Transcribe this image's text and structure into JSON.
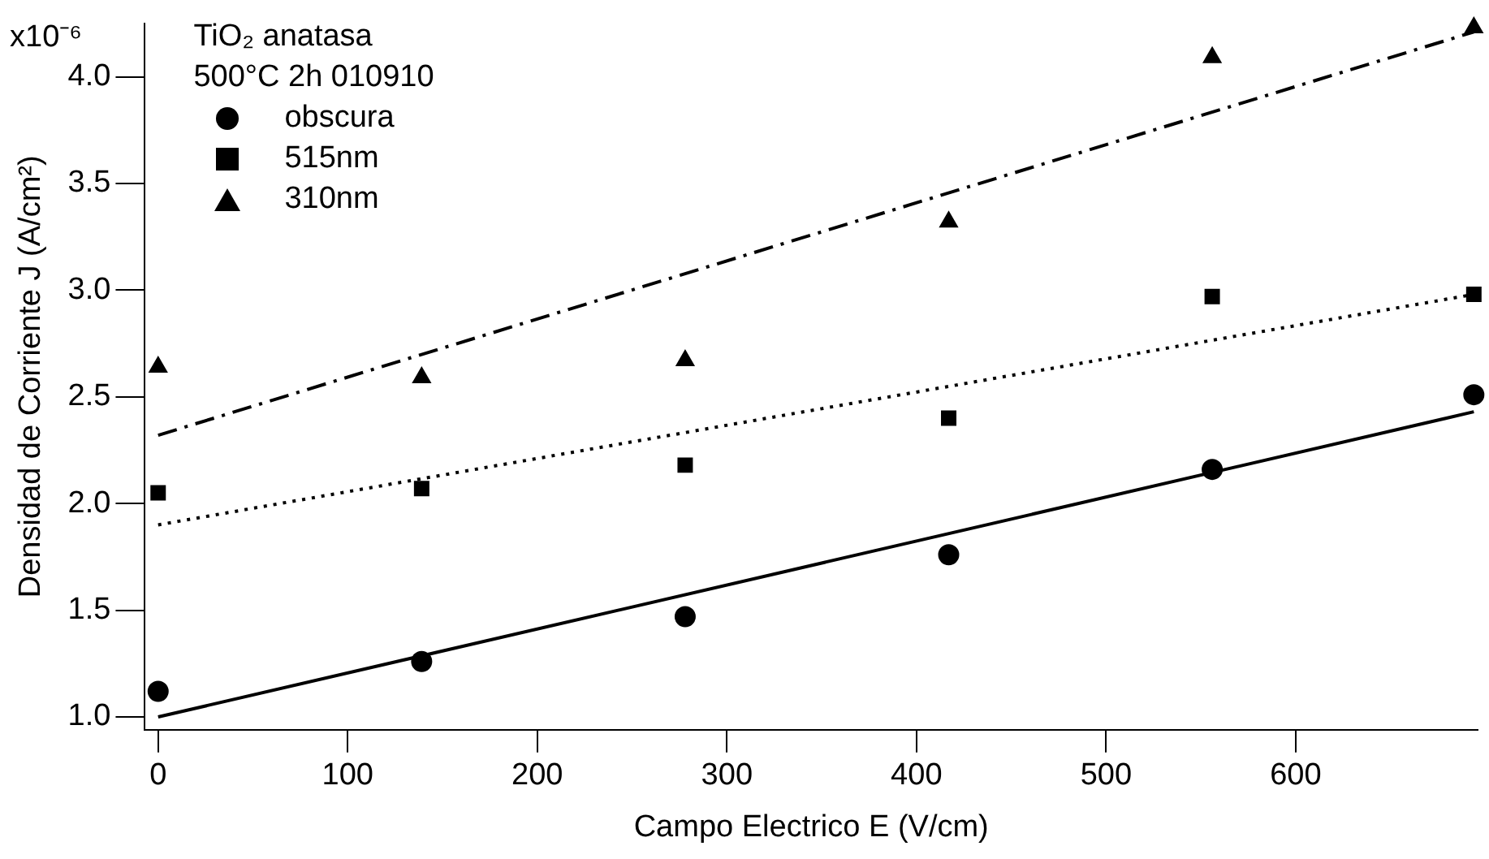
{
  "chart_data": {
    "type": "scatter",
    "xlabel": "Campo Electrico E (V/cm)",
    "ylabel": "Densidad de Corriente J (A/cm²)",
    "legend_title": "TiO₂ anatasa\n500°C 2h 010910",
    "xlim": [
      -7,
      696
    ],
    "xticks": [
      0,
      100,
      200,
      300,
      400,
      500,
      600
    ],
    "ylim": [
      0.94,
      4.25
    ],
    "yticks": [
      {
        "value": 1.0,
        "label": "1.0"
      },
      {
        "value": 1.5,
        "label": "1.5"
      },
      {
        "value": 2.0,
        "label": "2.0"
      },
      {
        "value": 2.5,
        "label": "2.5"
      },
      {
        "value": 3.0,
        "label": "3.0"
      },
      {
        "value": 3.5,
        "label": "3.5"
      },
      {
        "value": 4.0,
        "label": "4.0"
      }
    ],
    "annotations": [
      "x10⁻⁶"
    ],
    "grid": false,
    "legend": "top left",
    "series": [
      {
        "name": "obscura",
        "color": "#000000",
        "marker": "circle",
        "x": [
          0,
          139,
          278,
          417,
          556,
          694
        ],
        "values": [
          1.12,
          1.26,
          1.47,
          1.76,
          2.16,
          2.51
        ]
      },
      {
        "name": "515nm",
        "color": "#000000",
        "marker": "square",
        "x": [
          0,
          139,
          278,
          417,
          556,
          694
        ],
        "values": [
          2.05,
          2.07,
          2.18,
          2.4,
          2.97,
          2.98
        ]
      },
      {
        "name": "310nm",
        "color": "#000000",
        "marker": "triangle",
        "x": [
          0,
          139,
          278,
          417,
          556,
          694
        ],
        "values": [
          2.64,
          2.59,
          2.67,
          3.32,
          4.09,
          4.23
        ]
      },
      {
        "type": "line",
        "color": "#000000",
        "marker": "none",
        "line_style": "solid",
        "x": [
          0,
          694
        ],
        "values": [
          1.0,
          2.43
        ]
      },
      {
        "type": "line",
        "color": "#000000",
        "marker": "none",
        "line_style": "dotted",
        "x": [
          0,
          694
        ],
        "values": [
          1.9,
          2.98
        ]
      },
      {
        "type": "line",
        "color": "#000000",
        "marker": "none",
        "line_style": "dashed",
        "x": [
          0,
          694
        ],
        "values": [
          2.32,
          4.21
        ]
      }
    ]
  }
}
